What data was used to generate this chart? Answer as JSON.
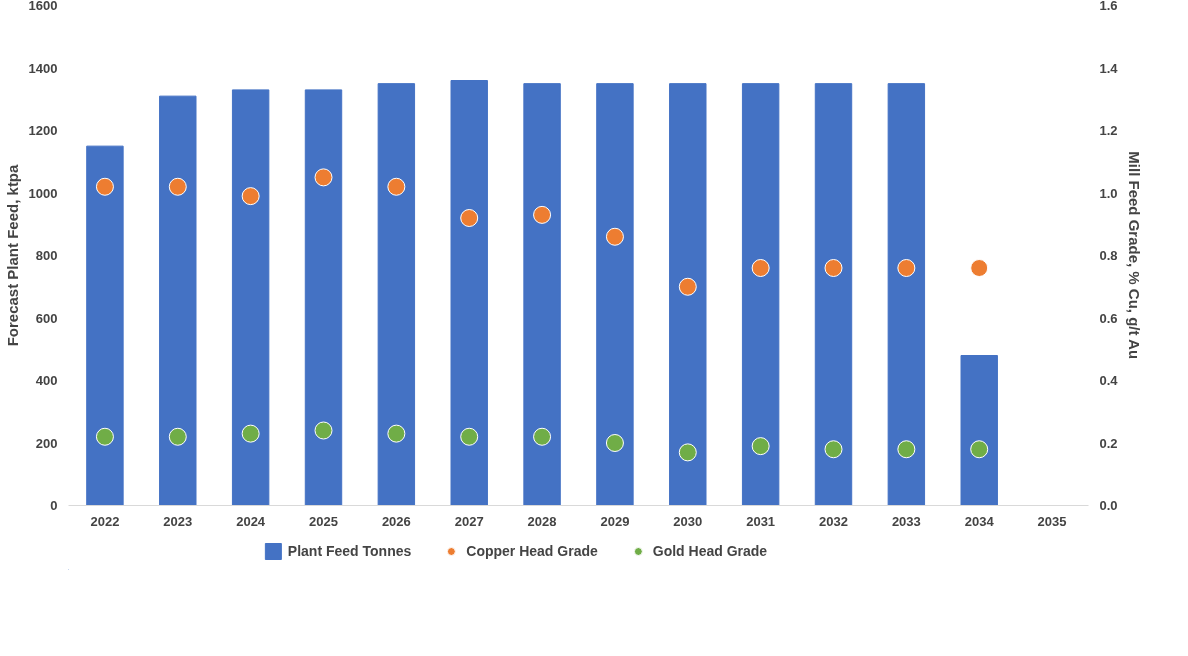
{
  "chart_data": {
    "type": "bar",
    "ylabel": "Forecast Plant Feed, ktpa",
    "y2label": "Mill Feed Grade, % Cu, g/t Au",
    "categories": [
      "2022",
      "2023",
      "2024",
      "2025",
      "2026",
      "2027",
      "2028",
      "2029",
      "2030",
      "2031",
      "2032",
      "2033",
      "2034",
      "2035"
    ],
    "series": [
      {
        "name": "Plant Feed Tonnes",
        "color": "#4472c4",
        "values": [
          1150,
          1310,
          1330,
          1330,
          1350,
          1360,
          1350,
          1350,
          1350,
          1350,
          1350,
          1350,
          480,
          null
        ]
      },
      {
        "name": "Copper Head Grade",
        "type": "scatter",
        "axis": "y2",
        "color": "#ed7d31",
        "values": [
          1.02,
          1.02,
          0.99,
          1.05,
          1.02,
          0.92,
          0.93,
          0.86,
          0.7,
          0.76,
          0.76,
          0.76,
          0.76,
          null
        ]
      },
      {
        "name": "Gold Head Grade",
        "type": "scatter",
        "axis": "y2",
        "color": "#70ad47",
        "values": [
          0.22,
          0.22,
          0.23,
          0.24,
          0.23,
          0.22,
          0.22,
          0.2,
          0.17,
          0.19,
          0.18,
          0.18,
          0.18,
          null
        ]
      }
    ],
    "ylim": [
      0,
      1600
    ],
    "yticks": [
      0,
      200,
      400,
      600,
      800,
      1000,
      1200,
      1400,
      1600
    ],
    "y2lim": [
      0,
      1.6
    ],
    "y2ticks": [
      {
        "value": 0,
        "label": "0.0"
      },
      0.2,
      0.4,
      0.6,
      0.8,
      {
        "value": 1,
        "label": "1.0"
      },
      1.2,
      1.4,
      1.6
    ],
    "grid": false,
    "legend": "bottom",
    "marker": "circle"
  }
}
